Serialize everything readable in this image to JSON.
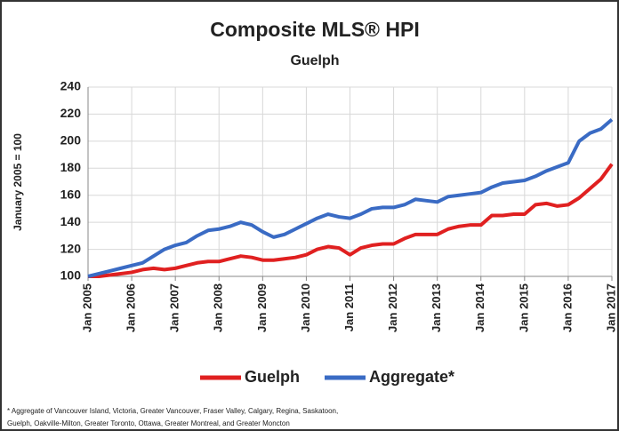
{
  "chart_data": {
    "type": "line",
    "title": "Composite MLS® HPI",
    "subtitle": "Guelph",
    "y_label": "January 2005 = 100",
    "categories": [
      "Jan 2005",
      null,
      null,
      null,
      "Jan 2006",
      null,
      null,
      null,
      "Jan 2007",
      null,
      null,
      null,
      "Jan 2008",
      null,
      null,
      null,
      "Jan 2009",
      null,
      null,
      null,
      "Jan 2010",
      null,
      null,
      null,
      "Jan 2011",
      null,
      null,
      null,
      "Jan 2012",
      null,
      null,
      null,
      "Jan 2013",
      null,
      null,
      null,
      "Jan 2014",
      null,
      null,
      null,
      "Jan 2015",
      null,
      null,
      null,
      "Jan 2016",
      null,
      null,
      null,
      "Jan 2017"
    ],
    "series": [
      {
        "name": "Guelph",
        "color": "#e02020",
        "values": [
          100,
          100,
          101,
          102,
          103,
          105,
          106,
          105,
          106,
          108,
          110,
          111,
          111,
          113,
          115,
          114,
          112,
          112,
          113,
          114,
          116,
          120,
          122,
          121,
          116,
          121,
          123,
          124,
          124,
          128,
          131,
          131,
          131,
          135,
          137,
          138,
          138,
          145,
          145,
          146,
          146,
          153,
          154,
          152,
          153,
          158,
          165,
          172,
          183
        ]
      },
      {
        "name": "Aggregate*",
        "color": "#3a6bc4",
        "values": [
          100,
          102,
          104,
          106,
          108,
          110,
          115,
          120,
          123,
          125,
          130,
          134,
          135,
          137,
          140,
          138,
          133,
          129,
          131,
          135,
          139,
          143,
          146,
          144,
          143,
          146,
          150,
          151,
          151,
          153,
          157,
          156,
          155,
          159,
          160,
          161,
          162,
          166,
          169,
          170,
          171,
          174,
          178,
          181,
          184,
          200,
          206,
          209,
          216
        ]
      }
    ],
    "ylim": [
      100,
      240
    ],
    "yticks": [
      100,
      120,
      140,
      160,
      180,
      200,
      220,
      240
    ],
    "grid": true,
    "legend": "bottom",
    "footnote": [
      "* Aggregate of Vancouver Island, Victoria, Greater Vancouver, Fraser Valley, Calgary, Regina, Saskatoon,",
      "Guelph, Oakville-Milton, Greater Toronto, Ottawa, Greater Montreal, and Greater Moncton"
    ]
  }
}
